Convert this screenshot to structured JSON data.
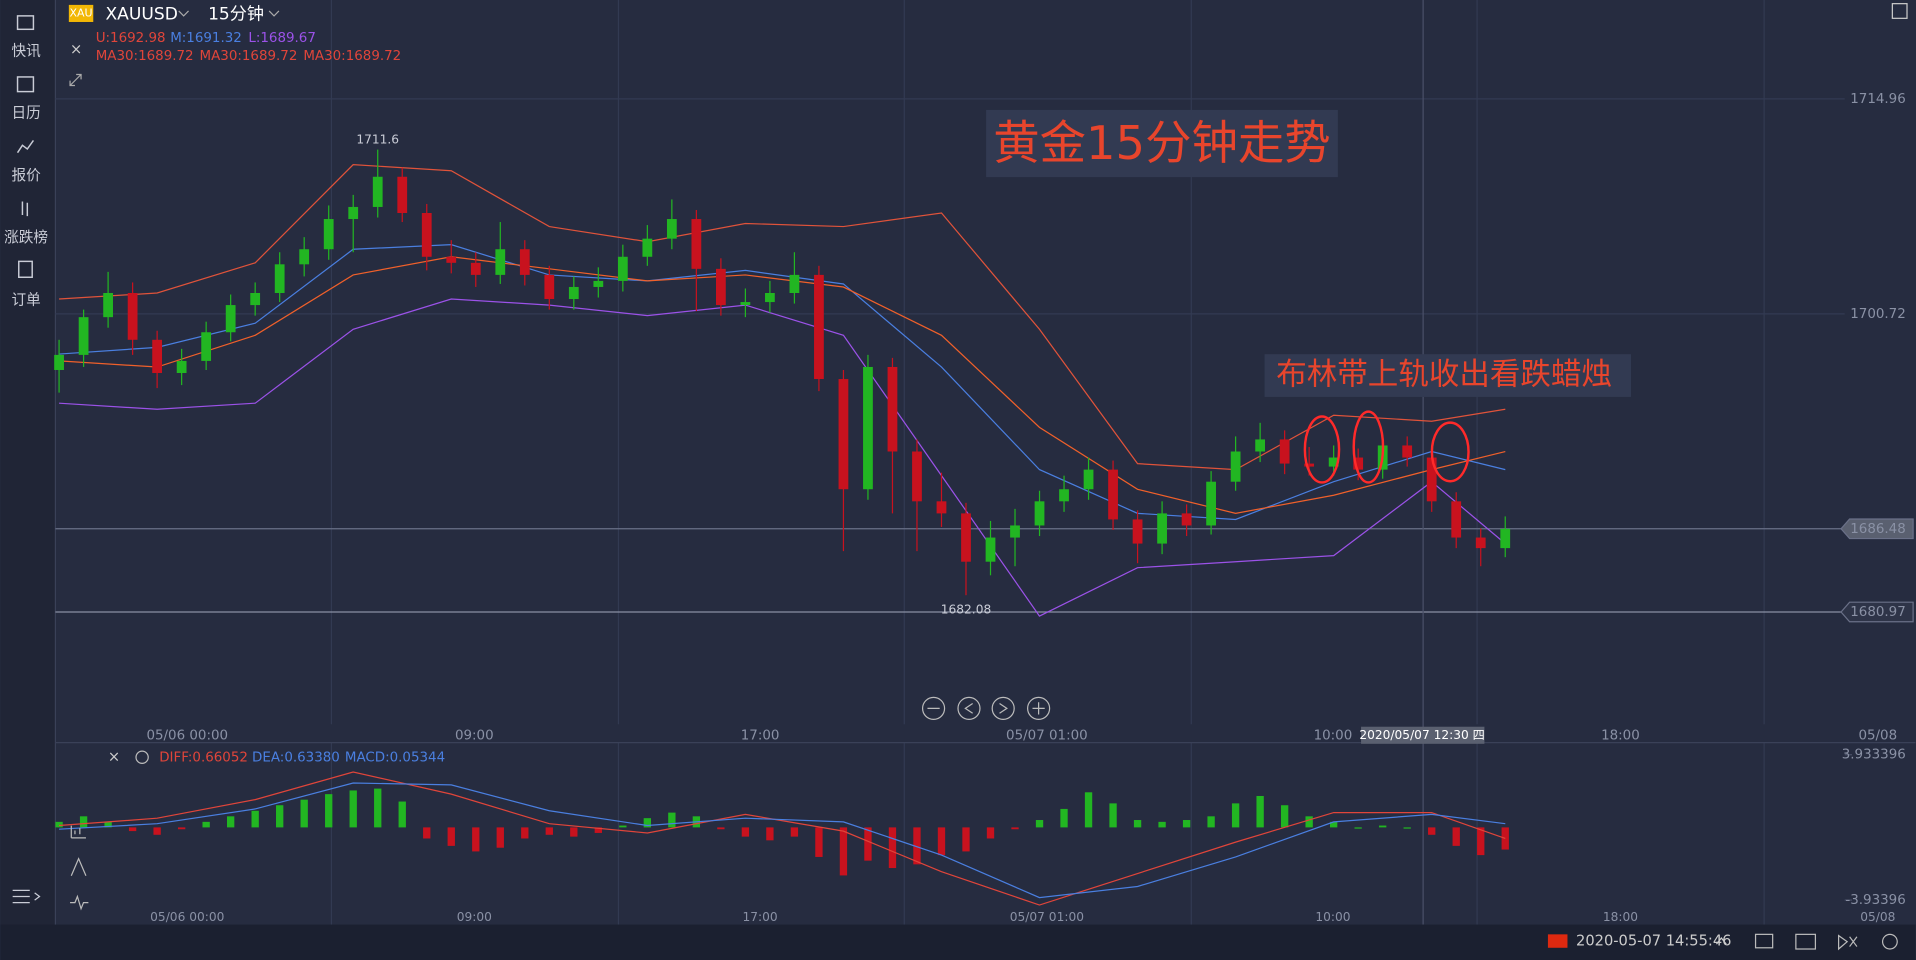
{
  "sidebar": {
    "items": [
      "快讯",
      "日历",
      "报价",
      "涨跌榜",
      "订单"
    ]
  },
  "header": {
    "symbol_badge": "XAU",
    "symbol": "XAUUSD",
    "period": "15分钟",
    "boll_u": "U:1692.98",
    "boll_m": "M:1691.32",
    "boll_l": "L:1689.67",
    "ma": [
      "MA30:1689.72",
      "MA30:1689.72",
      "MA30:1689.72"
    ]
  },
  "annotations": {
    "title": "黄金15分钟走势",
    "note": "布林带上轨收出看跌蜡烛",
    "crosshair_time": "2020/05/07 12:30 四"
  },
  "macd_legend": {
    "diff": "DIFF:0.66052",
    "dea": "DEA:0.63380",
    "macd": "MACD:0.05344"
  },
  "status_bar": {
    "datetime": "2020-05-07 14:55:46"
  },
  "chart_data": [
    {
      "type": "candlestick",
      "up_color": "#22b622",
      "down_color": "#c8121e",
      "ylim": [
        1673.53,
        1721.51
      ],
      "yticks": [
        1714.96,
        1700.72,
        1686.48,
        1680.97
      ],
      "xlim": [
        -0.15,
        72.85
      ],
      "xticks": [
        {
          "value": 5.23,
          "label": "05/06 00:00"
        },
        {
          "value": 16.94,
          "label": "09:00"
        },
        {
          "value": 28.6,
          "label": "17:00"
        },
        {
          "value": 40.3,
          "label": "05/07 01:00"
        },
        {
          "value": 51.97,
          "label": "10:00"
        },
        {
          "value": 63.7,
          "label": "18:00"
        },
        {
          "value": 74.2,
          "label": "05/08"
        }
      ],
      "candles": [
        [
          1697.0,
          1699.0,
          1695.5,
          1698.0
        ],
        [
          1698.0,
          1701.0,
          1697.2,
          1700.5
        ],
        [
          1700.5,
          1703.5,
          1699.8,
          1702.1
        ],
        [
          1702.1,
          1702.8,
          1698.0,
          1699.0
        ],
        [
          1699.0,
          1699.6,
          1695.8,
          1696.8
        ],
        [
          1696.8,
          1698.4,
          1696.0,
          1697.6
        ],
        [
          1697.6,
          1700.2,
          1697.0,
          1699.5
        ],
        [
          1699.5,
          1702.0,
          1698.9,
          1701.3
        ],
        [
          1701.3,
          1702.8,
          1700.6,
          1702.1
        ],
        [
          1702.1,
          1704.8,
          1701.5,
          1704.0
        ],
        [
          1704.0,
          1705.8,
          1703.2,
          1705.0
        ],
        [
          1705.0,
          1707.9,
          1704.3,
          1707.0
        ],
        [
          1707.0,
          1708.6,
          1704.8,
          1707.8
        ],
        [
          1707.8,
          1711.6,
          1707.1,
          1709.8
        ],
        [
          1709.8,
          1710.4,
          1706.8,
          1707.4
        ],
        [
          1707.4,
          1708.0,
          1703.6,
          1704.5
        ],
        [
          1704.5,
          1705.6,
          1703.4,
          1704.1
        ],
        [
          1704.1,
          1704.8,
          1702.5,
          1703.3
        ],
        [
          1703.3,
          1706.8,
          1702.7,
          1705.0
        ],
        [
          1705.0,
          1705.6,
          1702.6,
          1703.3
        ],
        [
          1703.3,
          1703.9,
          1701.0,
          1701.7
        ],
        [
          1701.7,
          1703.2,
          1701.0,
          1702.5
        ],
        [
          1702.5,
          1703.8,
          1701.8,
          1702.9
        ],
        [
          1702.9,
          1705.3,
          1702.2,
          1704.5
        ],
        [
          1704.5,
          1706.6,
          1703.9,
          1705.7
        ],
        [
          1705.7,
          1708.3,
          1705.0,
          1707.0
        ],
        [
          1707.0,
          1707.6,
          1700.9,
          1703.7
        ],
        [
          1703.7,
          1704.4,
          1700.6,
          1701.3
        ],
        [
          1701.3,
          1702.4,
          1700.5,
          1701.5
        ],
        [
          1701.5,
          1702.9,
          1700.8,
          1702.1
        ],
        [
          1702.1,
          1704.8,
          1701.4,
          1703.3
        ],
        [
          1703.3,
          1703.9,
          1695.6,
          1696.4
        ],
        [
          1696.4,
          1697.0,
          1685.0,
          1689.1
        ],
        [
          1689.1,
          1698.0,
          1688.4,
          1697.2
        ],
        [
          1697.2,
          1697.8,
          1687.5,
          1691.6
        ],
        [
          1691.6,
          1692.4,
          1685.0,
          1688.3
        ],
        [
          1688.3,
          1690.2,
          1686.6,
          1687.5
        ],
        [
          1687.5,
          1688.2,
          1682.08,
          1684.3
        ],
        [
          1684.3,
          1687.0,
          1683.4,
          1685.9
        ],
        [
          1685.9,
          1687.8,
          1684.0,
          1686.7
        ],
        [
          1686.7,
          1689.0,
          1686.0,
          1688.3
        ],
        [
          1688.3,
          1690.0,
          1687.6,
          1689.1
        ],
        [
          1689.1,
          1691.2,
          1688.4,
          1690.4
        ],
        [
          1690.4,
          1691.0,
          1686.4,
          1687.1
        ],
        [
          1687.1,
          1687.7,
          1684.2,
          1685.5
        ],
        [
          1685.5,
          1688.3,
          1684.8,
          1687.5
        ],
        [
          1687.5,
          1688.1,
          1686.0,
          1686.7
        ],
        [
          1686.7,
          1690.3,
          1686.1,
          1689.6
        ],
        [
          1689.6,
          1692.6,
          1689.0,
          1691.6
        ],
        [
          1691.6,
          1693.5,
          1690.9,
          1692.4
        ],
        [
          1692.4,
          1693.0,
          1690.1,
          1690.8
        ],
        [
          1690.8,
          1691.9,
          1690.0,
          1690.6
        ],
        [
          1690.6,
          1692.0,
          1690.0,
          1691.2
        ],
        [
          1691.2,
          1691.8,
          1689.7,
          1690.4
        ],
        [
          1690.4,
          1692.7,
          1689.8,
          1692.0
        ],
        [
          1692.0,
          1692.6,
          1690.6,
          1691.2
        ],
        [
          1691.2,
          1691.8,
          1687.6,
          1688.3
        ],
        [
          1688.3,
          1688.9,
          1685.2,
          1685.9
        ],
        [
          1685.9,
          1686.5,
          1684.0,
          1685.2
        ],
        [
          1685.2,
          1687.3,
          1684.6,
          1686.48
        ]
      ],
      "high_index": 13,
      "low_index": 37,
      "lines_x": [
        0,
        4,
        8,
        12,
        16,
        20,
        24,
        28,
        32,
        36,
        40,
        44,
        48,
        52,
        56,
        59
      ],
      "lines": [
        {
          "color": "#e0533a",
          "values": [
            1701.7,
            1702.1,
            1704.1,
            1710.6,
            1710.2,
            1706.5,
            1705.5,
            1706.7,
            1706.5,
            1707.4,
            1699.7,
            1690.8,
            1690.4,
            1694.0,
            1693.6,
            1694.4
          ]
        },
        {
          "color": "#4a7fe0",
          "values": [
            1698.05,
            1698.5,
            1700.1,
            1705.0,
            1705.3,
            1703.3,
            1702.9,
            1703.6,
            1702.7,
            1697.2,
            1690.4,
            1687.5,
            1687.1,
            1689.6,
            1691.6,
            1690.4
          ]
        },
        {
          "color": "#9b52e8",
          "values": [
            1694.8,
            1694.4,
            1694.8,
            1699.7,
            1701.7,
            1701.3,
            1700.6,
            1701.3,
            1699.3,
            1690.0,
            1680.7,
            1683.9,
            1684.3,
            1684.7,
            1689.6,
            1685.5
          ]
        },
        {
          "color": "#f0602a",
          "values": [
            1697.6,
            1697.2,
            1699.3,
            1703.3,
            1704.5,
            1703.7,
            1702.9,
            1703.3,
            1702.5,
            1699.3,
            1693.2,
            1689.1,
            1687.5,
            1688.7,
            1690.4,
            1691.6
          ]
        }
      ],
      "crosshair_x": 55.65
    },
    {
      "type": "macd",
      "ylim": [
        -5.26,
        4.59
      ],
      "yticks": [
        3.933396,
        -3.93396
      ],
      "histogram": [
        0.3,
        0.6,
        0.3,
        -0.2,
        -0.4,
        -0.1,
        0.3,
        0.6,
        0.9,
        1.2,
        1.5,
        1.8,
        2.0,
        2.1,
        1.4,
        -0.6,
        -1.0,
        -1.3,
        -1.1,
        -0.6,
        -0.4,
        -0.5,
        -0.3,
        0.1,
        0.5,
        0.8,
        0.6,
        -0.1,
        -0.5,
        -0.7,
        -0.5,
        -1.6,
        -2.6,
        -1.8,
        -2.2,
        -2.0,
        -1.5,
        -1.3,
        -0.6,
        -0.1,
        0.4,
        1.0,
        1.9,
        1.3,
        0.4,
        0.3,
        0.4,
        0.6,
        1.3,
        1.7,
        1.2,
        0.6,
        0.3,
        0.0,
        0.1,
        0.0,
        -0.4,
        -1.0,
        -1.5,
        -1.2
      ],
      "up_color": "#22b622",
      "down_color": "#c8121e",
      "lines": [
        {
          "color": "#e0453a",
          "values": [
            0.1,
            0.5,
            1.5,
            3.0,
            1.8,
            0.2,
            -0.3,
            0.7,
            -0.2,
            -2.4,
            -4.2,
            -2.5,
            -0.8,
            0.8,
            0.8,
            -0.6
          ]
        },
        {
          "color": "#4a7fe0",
          "values": [
            -0.1,
            0.2,
            1.0,
            2.4,
            2.3,
            0.9,
            0.1,
            0.5,
            0.3,
            -1.5,
            -3.8,
            -3.2,
            -1.6,
            0.3,
            0.7,
            0.2
          ]
        }
      ]
    }
  ]
}
